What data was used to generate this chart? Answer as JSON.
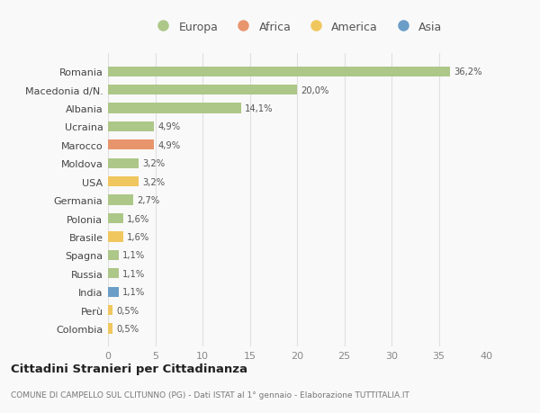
{
  "countries": [
    "Romania",
    "Macedonia d/N.",
    "Albania",
    "Ucraina",
    "Marocco",
    "Moldova",
    "USA",
    "Germania",
    "Polonia",
    "Brasile",
    "Spagna",
    "Russia",
    "India",
    "Perù",
    "Colombia"
  ],
  "values": [
    36.2,
    20.0,
    14.1,
    4.9,
    4.9,
    3.2,
    3.2,
    2.7,
    1.6,
    1.6,
    1.1,
    1.1,
    1.1,
    0.5,
    0.5
  ],
  "labels": [
    "36,2%",
    "20,0%",
    "14,1%",
    "4,9%",
    "4,9%",
    "3,2%",
    "3,2%",
    "2,7%",
    "1,6%",
    "1,6%",
    "1,1%",
    "1,1%",
    "1,1%",
    "0,5%",
    "0,5%"
  ],
  "continent": [
    "Europa",
    "Europa",
    "Europa",
    "Europa",
    "Africa",
    "Europa",
    "America",
    "Europa",
    "Europa",
    "America",
    "Europa",
    "Europa",
    "Asia",
    "America",
    "America"
  ],
  "colors": {
    "Europa": "#adc788",
    "Africa": "#e8956d",
    "America": "#f0c75e",
    "Asia": "#6b9ec7"
  },
  "xlim": [
    0,
    40
  ],
  "xticks": [
    0,
    5,
    10,
    15,
    20,
    25,
    30,
    35,
    40
  ],
  "title": "Cittadini Stranieri per Cittadinanza",
  "subtitle": "COMUNE DI CAMPELLO SUL CLITUNNO (PG) - Dati ISTAT al 1° gennaio - Elaborazione TUTTITALIA.IT",
  "bg_color": "#f9f9f9",
  "grid_color": "#e0e0e0",
  "legend_order": [
    "Europa",
    "Africa",
    "America",
    "Asia"
  ]
}
